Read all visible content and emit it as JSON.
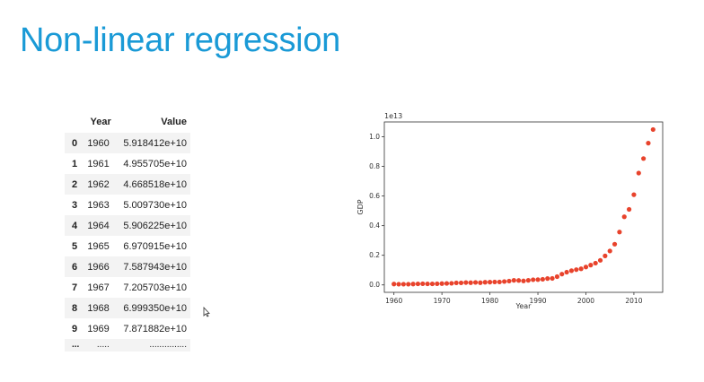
{
  "slide": {
    "title": "Non-linear regression"
  },
  "table": {
    "headers": [
      "",
      "Year",
      "Value"
    ],
    "rows": [
      {
        "idx": "0",
        "year": "1960",
        "value": "5.918412e+10"
      },
      {
        "idx": "1",
        "year": "1961",
        "value": "4.955705e+10"
      },
      {
        "idx": "2",
        "year": "1962",
        "value": "4.668518e+10"
      },
      {
        "idx": "3",
        "year": "1963",
        "value": "5.009730e+10"
      },
      {
        "idx": "4",
        "year": "1964",
        "value": "5.906225e+10"
      },
      {
        "idx": "5",
        "year": "1965",
        "value": "6.970915e+10"
      },
      {
        "idx": "6",
        "year": "1966",
        "value": "7.587943e+10"
      },
      {
        "idx": "7",
        "year": "1967",
        "value": "7.205703e+10"
      },
      {
        "idx": "8",
        "year": "1968",
        "value": "6.999350e+10"
      },
      {
        "idx": "9",
        "year": "1969",
        "value": "7.871882e+10"
      }
    ],
    "ellipsis": [
      "...",
      ".....",
      "..............."
    ]
  },
  "chart_data": {
    "type": "scatter",
    "xlabel": "Year",
    "ylabel": "GDP",
    "offset_label": "1e13",
    "xlim": [
      1958,
      2016
    ],
    "ylim": [
      -0.05,
      1.1
    ],
    "xticks": [
      1960,
      1970,
      1980,
      1990,
      2000,
      2010
    ],
    "yticks": [
      0.0,
      0.2,
      0.4,
      0.6,
      0.8,
      1.0
    ],
    "ytick_labels": [
      "0.0",
      "0.2",
      "0.4",
      "0.6",
      "0.8",
      "1.0"
    ],
    "grid": false,
    "color": "#e8432c",
    "x": [
      1960,
      1961,
      1962,
      1963,
      1964,
      1965,
      1966,
      1967,
      1968,
      1969,
      1970,
      1971,
      1972,
      1973,
      1974,
      1975,
      1976,
      1977,
      1978,
      1979,
      1980,
      1981,
      1982,
      1983,
      1984,
      1985,
      1986,
      1987,
      1988,
      1989,
      1990,
      1991,
      1992,
      1993,
      1994,
      1995,
      1996,
      1997,
      1998,
      1999,
      2000,
      2001,
      2002,
      2003,
      2004,
      2005,
      2006,
      2007,
      2008,
      2009,
      2010,
      2011,
      2012,
      2013,
      2014
    ],
    "y": [
      0.006,
      0.005,
      0.005,
      0.005,
      0.006,
      0.007,
      0.008,
      0.007,
      0.007,
      0.008,
      0.009,
      0.01,
      0.011,
      0.014,
      0.014,
      0.016,
      0.015,
      0.017,
      0.015,
      0.018,
      0.019,
      0.02,
      0.02,
      0.023,
      0.026,
      0.031,
      0.03,
      0.027,
      0.031,
      0.035,
      0.036,
      0.038,
      0.043,
      0.044,
      0.056,
      0.073,
      0.086,
      0.096,
      0.103,
      0.109,
      0.121,
      0.134,
      0.147,
      0.166,
      0.196,
      0.229,
      0.275,
      0.357,
      0.46,
      0.51,
      0.609,
      0.755,
      0.853,
      0.957,
      1.049
    ]
  }
}
